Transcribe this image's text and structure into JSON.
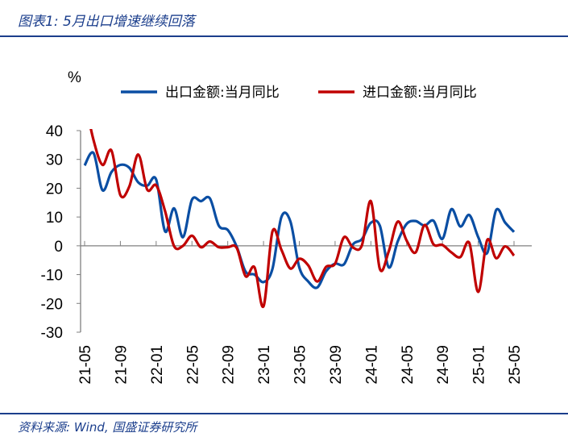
{
  "header": {
    "title": "图表1:  5月出口增速继续回落"
  },
  "footer": {
    "source": "资料来源:  Wind,  国盛证券研究所"
  },
  "chart_data": {
    "type": "line",
    "title": "",
    "ylabel": "%",
    "xlabel": "",
    "ylim": [
      -30,
      40
    ],
    "yticks": [
      "40",
      "30",
      "20",
      "10",
      "0",
      "-10",
      "-20",
      "-30"
    ],
    "grid": false,
    "legend": "top",
    "x": [
      "21-05",
      "21-06",
      "21-07",
      "21-08",
      "21-09",
      "21-10",
      "21-11",
      "21-12",
      "22-01",
      "22-02",
      "22-03",
      "22-04",
      "22-05",
      "22-06",
      "22-07",
      "22-08",
      "22-09",
      "22-10",
      "22-11",
      "22-12",
      "23-01",
      "23-02",
      "23-03",
      "23-04",
      "23-05",
      "23-06",
      "23-07",
      "23-08",
      "23-09",
      "23-10",
      "23-11",
      "23-12",
      "24-01",
      "24-02",
      "24-03",
      "24-04",
      "24-05",
      "24-06",
      "24-07",
      "24-08",
      "24-09",
      "24-10",
      "24-11",
      "24-12",
      "25-01",
      "25-02",
      "25-03",
      "25-04",
      "25-05"
    ],
    "xticks": [
      "21-05",
      "21-09",
      "22-01",
      "22-05",
      "22-09",
      "23-01",
      "23-05",
      "23-09",
      "24-01",
      "24-05",
      "24-09",
      "25-01",
      "25-05"
    ],
    "series": [
      {
        "name": "出口金额:当月同比",
        "color": "#0a4ea3",
        "values": [
          27.9,
          32.2,
          19.3,
          25.6,
          28.1,
          27.1,
          22,
          20.9,
          23,
          5,
          13,
          3,
          16,
          15.5,
          16.5,
          7,
          5.5,
          -0.3,
          -9,
          -10,
          -12.6,
          -8,
          10,
          8.5,
          -7.5,
          -12.4,
          -14.5,
          -8.8,
          -6.2,
          -6.4,
          0.5,
          2.3,
          8,
          7,
          -7.5,
          1.5,
          7.6,
          8.6,
          7,
          8.7,
          2.4,
          12.7,
          6.7,
          10.7,
          3,
          -2.5,
          12.4,
          8.1,
          4.8
        ]
      },
      {
        "name": "进口金额:当月同比",
        "color": "#c00000",
        "values": [
          51,
          36.7,
          28.1,
          33.1,
          17.6,
          20.6,
          31.7,
          19.5,
          21,
          12,
          -0.1,
          0,
          3.5,
          -0.5,
          1.5,
          -0.5,
          -0.5,
          -0.7,
          -10.6,
          -7.5,
          -21,
          5,
          -1.4,
          -7.9,
          -4.5,
          -6.8,
          -12.4,
          -7.3,
          -6.2,
          3,
          -0.6,
          0.2,
          15.5,
          -8,
          -1.9,
          8.4,
          1.8,
          -2.3,
          7.2,
          0.5,
          0.3,
          -2.3,
          -3.9,
          1,
          -16,
          2,
          -4.3,
          -0.2,
          -3.4
        ]
      }
    ]
  }
}
